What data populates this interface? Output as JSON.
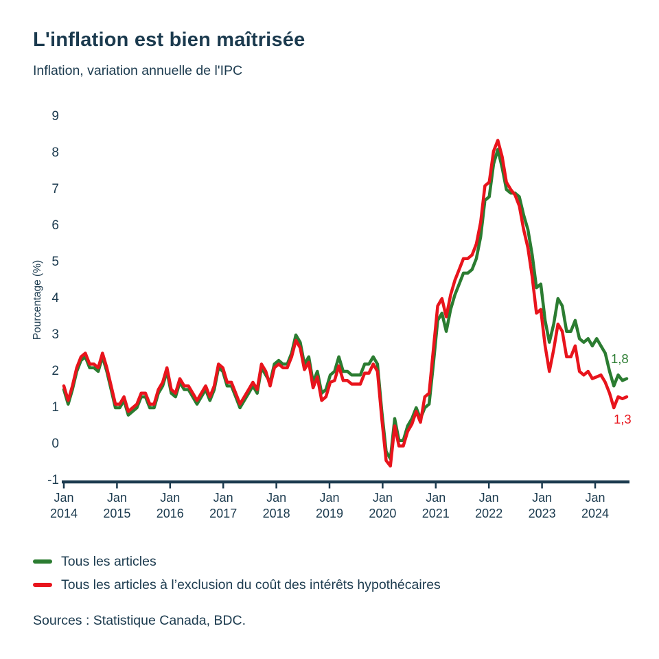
{
  "page": {
    "background": "#ffffff",
    "text_color": "#1b3a4e"
  },
  "chart_data": {
    "type": "line",
    "title": "L'inflation est bien maîtrisée",
    "subtitle": "Inflation, variation annuelle de l'IPC",
    "ylabel": "Pourcentage (%)",
    "ylim": [
      -1,
      9
    ],
    "grid": false,
    "legend_position": "bottom-left",
    "y_tick_labels": [
      "9",
      "8",
      "7",
      "6",
      "5",
      "4",
      "3",
      "2",
      "1",
      "0",
      "-1"
    ],
    "x_tick_labels": [
      {
        "month": "Jan",
        "year": "2014"
      },
      {
        "month": "Jan",
        "year": "2015"
      },
      {
        "month": "Jan",
        "year": "2016"
      },
      {
        "month": "Jan",
        "year": "2017"
      },
      {
        "month": "Jan",
        "year": "2018"
      },
      {
        "month": "Jan",
        "year": "2019"
      },
      {
        "month": "Jan",
        "year": "2020"
      },
      {
        "month": "Jan",
        "year": "2021"
      },
      {
        "month": "Jan",
        "year": "2022"
      },
      {
        "month": "Jan",
        "year": "2023"
      },
      {
        "month": "Jan",
        "year": "2024"
      }
    ],
    "x_start": "2014-01",
    "x_end": "2024-12",
    "axis_color": "#1b3a4e",
    "series": [
      {
        "name": "Tous les articles",
        "color": "#2b7c31",
        "end_label": "1,8",
        "values": [
          1.5,
          1.1,
          1.5,
          2.0,
          2.3,
          2.4,
          2.1,
          2.1,
          2.0,
          2.4,
          2.0,
          1.5,
          1.0,
          1.0,
          1.2,
          0.8,
          0.9,
          1.0,
          1.3,
          1.3,
          1.0,
          1.0,
          1.4,
          1.6,
          2.0,
          1.4,
          1.3,
          1.7,
          1.5,
          1.5,
          1.3,
          1.1,
          1.3,
          1.5,
          1.2,
          1.5,
          2.1,
          2.0,
          1.6,
          1.6,
          1.3,
          1.0,
          1.2,
          1.4,
          1.6,
          1.4,
          2.1,
          1.9,
          1.7,
          2.2,
          2.3,
          2.2,
          2.2,
          2.5,
          3.0,
          2.8,
          2.2,
          2.4,
          1.7,
          2.0,
          1.4,
          1.5,
          1.9,
          2.0,
          2.4,
          2.0,
          2.0,
          1.9,
          1.9,
          1.9,
          2.2,
          2.2,
          2.4,
          2.2,
          0.9,
          -0.2,
          -0.4,
          0.7,
          0.1,
          0.1,
          0.5,
          0.7,
          1.0,
          0.7,
          1.0,
          1.1,
          2.2,
          3.4,
          3.6,
          3.1,
          3.7,
          4.1,
          4.4,
          4.7,
          4.7,
          4.8,
          5.1,
          5.7,
          6.7,
          6.8,
          7.7,
          8.1,
          7.6,
          7.0,
          6.9,
          6.9,
          6.8,
          6.3,
          5.9,
          5.2,
          4.3,
          4.4,
          3.4,
          2.8,
          3.3,
          4.0,
          3.8,
          3.1,
          3.1,
          3.4,
          2.9,
          2.8,
          2.9,
          2.7,
          2.9,
          2.7,
          2.5,
          2.0,
          1.6,
          1.9,
          1.75,
          1.8
        ]
      },
      {
        "name": "Tous les articles à l’exclusion du coût des intérêts hypothécaires",
        "color": "#e8141c",
        "end_label": "1,3",
        "values": [
          1.6,
          1.2,
          1.6,
          2.1,
          2.4,
          2.5,
          2.2,
          2.2,
          2.1,
          2.5,
          2.1,
          1.6,
          1.1,
          1.1,
          1.3,
          0.9,
          1.0,
          1.1,
          1.4,
          1.4,
          1.1,
          1.1,
          1.5,
          1.7,
          2.1,
          1.5,
          1.4,
          1.8,
          1.6,
          1.6,
          1.4,
          1.2,
          1.4,
          1.6,
          1.3,
          1.6,
          2.2,
          2.1,
          1.7,
          1.7,
          1.4,
          1.1,
          1.3,
          1.5,
          1.7,
          1.5,
          2.2,
          2.0,
          1.6,
          2.1,
          2.2,
          2.1,
          2.1,
          2.4,
          2.85,
          2.65,
          2.05,
          2.25,
          1.55,
          1.85,
          1.2,
          1.3,
          1.7,
          1.75,
          2.15,
          1.75,
          1.75,
          1.65,
          1.65,
          1.65,
          1.95,
          1.95,
          2.2,
          2.0,
          0.7,
          -0.45,
          -0.6,
          0.5,
          -0.05,
          -0.05,
          0.35,
          0.55,
          0.9,
          0.6,
          1.3,
          1.4,
          2.6,
          3.8,
          4.0,
          3.5,
          4.1,
          4.5,
          4.8,
          5.1,
          5.1,
          5.2,
          5.5,
          6.1,
          7.1,
          7.2,
          8.05,
          8.35,
          7.9,
          7.2,
          7.0,
          6.85,
          6.55,
          5.9,
          5.4,
          4.6,
          3.6,
          3.7,
          2.7,
          2.0,
          2.6,
          3.3,
          3.1,
          2.4,
          2.4,
          2.7,
          2.0,
          1.9,
          2.0,
          1.8,
          1.85,
          1.9,
          1.7,
          1.4,
          1.0,
          1.3,
          1.25,
          1.3
        ]
      }
    ],
    "sources": "Sources : Statistique Canada, BDC."
  }
}
